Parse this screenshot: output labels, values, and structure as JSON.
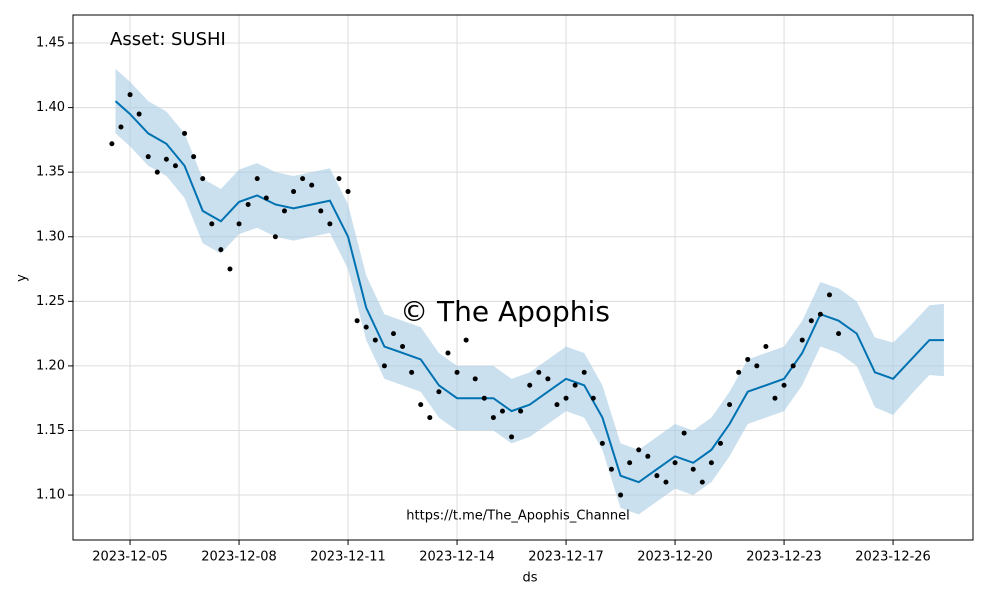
{
  "chart_data": {
    "type": "forecast",
    "title": "Asset: SUSHI",
    "xlabel": "ds",
    "ylabel": "y",
    "annotations": [
      "© The Apophis",
      "https://t.me/The_Apophis_Channel"
    ],
    "xlim": [
      -1.57,
      23.2
    ],
    "xticks": [
      {
        "value": 0,
        "label": "2023-12-05"
      },
      {
        "value": 3,
        "label": "2023-12-08"
      },
      {
        "value": 6,
        "label": "2023-12-11"
      },
      {
        "value": 9,
        "label": "2023-12-14"
      },
      {
        "value": 12,
        "label": "2023-12-17"
      },
      {
        "value": 15,
        "label": "2023-12-20"
      },
      {
        "value": 18,
        "label": "2023-12-23"
      },
      {
        "value": 21,
        "label": "2023-12-26"
      }
    ],
    "ylim": [
      1.0652,
      1.4717
    ],
    "yticks": [
      {
        "value": 1.1,
        "label": "1.10"
      },
      1.15,
      {
        "value": 1.2,
        "label": "1.20"
      },
      1.25,
      {
        "value": 1.3,
        "label": "1.30"
      },
      1.35,
      {
        "value": 1.4,
        "label": "1.40"
      },
      1.45
    ],
    "grid": true,
    "observed": {
      "color": "#000000",
      "x": [
        -0.5,
        -0.25,
        0,
        0.25,
        0.5,
        0.75,
        1,
        1.25,
        1.5,
        1.75,
        2,
        2.25,
        2.5,
        2.75,
        3,
        3.25,
        3.5,
        3.75,
        4,
        4.25,
        4.5,
        4.75,
        5,
        5.25,
        5.5,
        5.75,
        6,
        6.25,
        6.5,
        6.75,
        7,
        7.25,
        7.5,
        7.75,
        8,
        8.25,
        8.5,
        8.75,
        9,
        9.25,
        9.5,
        9.75,
        10,
        10.25,
        10.5,
        10.75,
        11,
        11.25,
        11.5,
        11.75,
        12,
        12.25,
        12.5,
        12.75,
        13,
        13.25,
        13.5,
        13.75,
        14,
        14.25,
        14.5,
        14.75,
        15,
        15.25,
        15.5,
        15.75,
        16,
        16.25,
        16.5,
        16.75,
        17,
        17.25,
        17.5,
        17.75,
        18,
        18.25,
        18.5,
        18.75,
        19,
        19.25,
        19.5
      ],
      "values": [
        1.372,
        1.385,
        1.41,
        1.395,
        1.362,
        1.35,
        1.36,
        1.355,
        1.38,
        1.362,
        1.345,
        1.31,
        1.29,
        1.275,
        1.31,
        1.325,
        1.345,
        1.33,
        1.3,
        1.32,
        1.335,
        1.345,
        1.34,
        1.32,
        1.31,
        1.345,
        1.335,
        1.235,
        1.23,
        1.22,
        1.2,
        1.225,
        1.215,
        1.195,
        1.17,
        1.16,
        1.18,
        1.21,
        1.195,
        1.22,
        1.19,
        1.175,
        1.16,
        1.165,
        1.145,
        1.165,
        1.185,
        1.195,
        1.19,
        1.17,
        1.175,
        1.185,
        1.195,
        1.175,
        1.14,
        1.12,
        1.1,
        1.125,
        1.135,
        1.13,
        1.115,
        1.11,
        1.125,
        1.148,
        1.12,
        1.11,
        1.125,
        1.14,
        1.17,
        1.195,
        1.205,
        1.2,
        1.215,
        1.175,
        1.185,
        1.2,
        1.22,
        1.235,
        1.24,
        1.255,
        1.225
      ]
    },
    "forecast": {
      "color": "#0072b2",
      "band_color": "#a6cbe3",
      "x": [
        -0.4,
        0,
        0.5,
        1,
        1.5,
        2,
        2.5,
        3,
        3.5,
        4,
        4.5,
        5,
        5.5,
        6,
        6.5,
        7,
        7.5,
        8,
        8.5,
        9,
        9.5,
        10,
        10.5,
        11,
        11.5,
        12,
        12.5,
        13,
        13.5,
        14,
        14.5,
        15,
        15.5,
        16,
        16.5,
        17,
        17.5,
        18,
        18.5,
        19,
        19.5,
        20,
        20.5,
        21,
        21.5,
        22,
        22.4
      ],
      "values": [
        1.405,
        1.395,
        1.38,
        1.372,
        1.355,
        1.32,
        1.312,
        1.327,
        1.332,
        1.325,
        1.322,
        1.325,
        1.328,
        1.3,
        1.245,
        1.215,
        1.21,
        1.205,
        1.185,
        1.175,
        1.175,
        1.175,
        1.165,
        1.17,
        1.18,
        1.19,
        1.185,
        1.16,
        1.115,
        1.11,
        1.12,
        1.13,
        1.125,
        1.135,
        1.155,
        1.18,
        1.185,
        1.19,
        1.21,
        1.24,
        1.235,
        1.225,
        1.195,
        1.19,
        1.205,
        1.22,
        1.22
      ],
      "lower": [
        1.38,
        1.37,
        1.355,
        1.347,
        1.33,
        1.295,
        1.287,
        1.302,
        1.307,
        1.3,
        1.297,
        1.3,
        1.303,
        1.275,
        1.22,
        1.19,
        1.185,
        1.18,
        1.16,
        1.15,
        1.15,
        1.15,
        1.14,
        1.145,
        1.155,
        1.165,
        1.16,
        1.135,
        1.09,
        1.085,
        1.095,
        1.105,
        1.1,
        1.11,
        1.13,
        1.155,
        1.16,
        1.165,
        1.185,
        1.215,
        1.21,
        1.2,
        1.168,
        1.162,
        1.178,
        1.193,
        1.192
      ],
      "upper": [
        1.43,
        1.42,
        1.405,
        1.397,
        1.38,
        1.345,
        1.337,
        1.352,
        1.357,
        1.35,
        1.347,
        1.35,
        1.353,
        1.325,
        1.27,
        1.24,
        1.235,
        1.23,
        1.21,
        1.2,
        1.2,
        1.2,
        1.19,
        1.195,
        1.205,
        1.215,
        1.21,
        1.185,
        1.14,
        1.135,
        1.145,
        1.155,
        1.15,
        1.16,
        1.18,
        1.205,
        1.21,
        1.215,
        1.235,
        1.265,
        1.26,
        1.25,
        1.222,
        1.218,
        1.232,
        1.247,
        1.248
      ]
    }
  }
}
